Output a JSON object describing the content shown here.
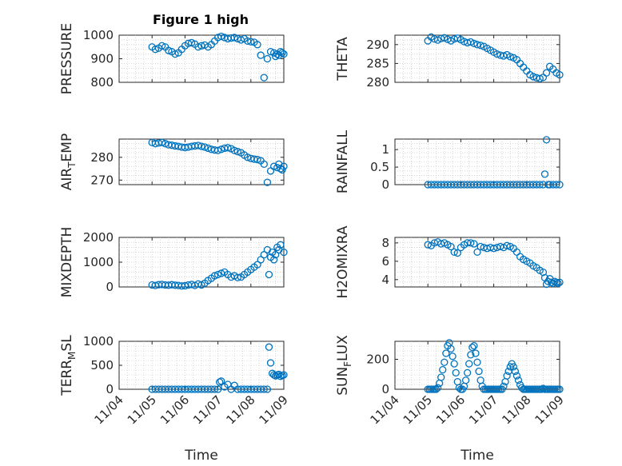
{
  "figure": {
    "title": "Figure 1 high",
    "marker_color": "#0072bd",
    "x_tick_labels": [
      "11/04",
      "11/05",
      "11/06",
      "11/07",
      "11/08",
      "11/09"
    ],
    "x_axis_label": "Time"
  },
  "chart_data": [
    {
      "type": "scatter",
      "name": "pressure",
      "ylabel": "PRESSURE",
      "xlim": [
        0,
        5
      ],
      "ylim": [
        800,
        1000
      ],
      "yticks": [
        800,
        900,
        1000
      ],
      "grid": true,
      "x": [
        1.0,
        1.1,
        1.2,
        1.3,
        1.4,
        1.5,
        1.6,
        1.7,
        1.8,
        1.9,
        2.0,
        2.1,
        2.2,
        2.3,
        2.4,
        2.5,
        2.6,
        2.7,
        2.8,
        2.9,
        3.0,
        3.1,
        3.2,
        3.3,
        3.4,
        3.5,
        3.6,
        3.7,
        3.8,
        3.9,
        4.0,
        4.1,
        4.2,
        4.3,
        4.4,
        4.5,
        4.6,
        4.7,
        4.75,
        4.8,
        4.85,
        4.9,
        4.95,
        5.0
      ],
      "y": [
        950,
        940,
        945,
        955,
        950,
        935,
        930,
        920,
        925,
        940,
        955,
        965,
        968,
        962,
        950,
        955,
        958,
        950,
        960,
        975,
        990,
        995,
        990,
        985,
        988,
        990,
        985,
        980,
        985,
        975,
        972,
        970,
        960,
        915,
        820,
        900,
        930,
        925,
        910,
        920,
        915,
        930,
        925,
        920
      ]
    },
    {
      "type": "scatter",
      "name": "theta",
      "ylabel": "THETA",
      "xlim": [
        0,
        5
      ],
      "ylim": [
        280,
        292.5
      ],
      "yticks": [
        280,
        285,
        290
      ],
      "grid": true,
      "x": [
        1.0,
        1.1,
        1.2,
        1.3,
        1.4,
        1.5,
        1.6,
        1.7,
        1.8,
        1.9,
        2.0,
        2.1,
        2.2,
        2.3,
        2.4,
        2.5,
        2.6,
        2.7,
        2.8,
        2.9,
        3.0,
        3.1,
        3.2,
        3.3,
        3.4,
        3.5,
        3.6,
        3.7,
        3.8,
        3.9,
        4.0,
        4.1,
        4.2,
        4.3,
        4.4,
        4.5,
        4.6,
        4.7,
        4.8,
        4.9,
        5.0
      ],
      "y": [
        291.0,
        292.0,
        291.5,
        291.2,
        291.6,
        291.8,
        291.4,
        291.0,
        291.5,
        291.7,
        291.3,
        290.8,
        290.5,
        290.7,
        290.3,
        290.0,
        289.8,
        289.5,
        289.0,
        288.5,
        288.0,
        287.5,
        287.2,
        287.0,
        287.3,
        286.8,
        286.5,
        286.0,
        285.0,
        284.0,
        283.0,
        282.0,
        281.5,
        281.2,
        281.0,
        281.3,
        282.5,
        284.2,
        283.5,
        282.5,
        282.0
      ]
    },
    {
      "type": "scatter",
      "name": "air_temp",
      "ylabel": "AIR_TEMP",
      "xlim": [
        0,
        5
      ],
      "ylim": [
        268,
        288
      ],
      "yticks": [
        270,
        280
      ],
      "grid": true,
      "x": [
        1.0,
        1.1,
        1.2,
        1.3,
        1.4,
        1.5,
        1.6,
        1.7,
        1.8,
        1.9,
        2.0,
        2.1,
        2.2,
        2.3,
        2.4,
        2.5,
        2.6,
        2.7,
        2.8,
        2.9,
        3.0,
        3.1,
        3.2,
        3.3,
        3.4,
        3.5,
        3.6,
        3.7,
        3.8,
        3.9,
        4.0,
        4.1,
        4.2,
        4.3,
        4.4,
        4.5,
        4.6,
        4.7,
        4.8,
        4.85,
        4.9,
        4.95,
        5.0
      ],
      "y": [
        286.5,
        286.0,
        286.3,
        286.5,
        286.0,
        285.5,
        285.3,
        285.0,
        284.8,
        284.5,
        284.3,
        284.5,
        284.8,
        285.0,
        285.2,
        284.8,
        284.5,
        284.0,
        283.5,
        283.2,
        283.0,
        283.5,
        284.0,
        284.2,
        283.8,
        283.0,
        282.5,
        282.0,
        281.0,
        280.0,
        279.5,
        279.2,
        279.0,
        278.5,
        277.0,
        269.0,
        274.0,
        276.0,
        275.5,
        277.0,
        275.0,
        274.5,
        276.0
      ]
    },
    {
      "type": "scatter",
      "name": "rainfall",
      "ylabel": "RAINFALL",
      "xlim": [
        0,
        5
      ],
      "ylim": [
        0,
        1.3
      ],
      "yticks": [
        0,
        0.5,
        1
      ],
      "grid": true,
      "x": [
        1.0,
        1.1,
        1.2,
        1.3,
        1.4,
        1.5,
        1.6,
        1.7,
        1.8,
        1.9,
        2.0,
        2.1,
        2.2,
        2.3,
        2.4,
        2.5,
        2.6,
        2.7,
        2.8,
        2.9,
        3.0,
        3.1,
        3.2,
        3.3,
        3.4,
        3.5,
        3.6,
        3.7,
        3.8,
        3.9,
        4.0,
        4.1,
        4.2,
        4.3,
        4.4,
        4.5,
        4.55,
        4.6,
        4.65,
        4.7,
        4.8,
        4.9,
        5.0
      ],
      "y": [
        0,
        0,
        0,
        0,
        0,
        0,
        0,
        0,
        0,
        0,
        0,
        0,
        0,
        0,
        0,
        0,
        0,
        0,
        0,
        0,
        0,
        0,
        0,
        0,
        0,
        0,
        0,
        0,
        0,
        0,
        0,
        0,
        0,
        0,
        0,
        0,
        0.3,
        1.28,
        0,
        0,
        0,
        0,
        0
      ]
    },
    {
      "type": "scatter",
      "name": "mixdepth",
      "ylabel": "MIXDEPTH",
      "xlim": [
        0,
        5
      ],
      "ylim": [
        0,
        2000
      ],
      "yticks": [
        0,
        1000,
        2000
      ],
      "grid": true,
      "x": [
        1.0,
        1.1,
        1.2,
        1.3,
        1.4,
        1.5,
        1.6,
        1.7,
        1.8,
        1.9,
        2.0,
        2.1,
        2.2,
        2.3,
        2.4,
        2.5,
        2.6,
        2.7,
        2.8,
        2.9,
        3.0,
        3.1,
        3.2,
        3.3,
        3.4,
        3.5,
        3.6,
        3.7,
        3.8,
        3.9,
        4.0,
        4.1,
        4.2,
        4.3,
        4.4,
        4.5,
        4.55,
        4.6,
        4.65,
        4.7,
        4.75,
        4.8,
        4.85,
        4.9,
        5.0
      ],
      "y": [
        80,
        60,
        90,
        100,
        80,
        70,
        90,
        70,
        60,
        40,
        50,
        80,
        100,
        60,
        120,
        80,
        150,
        260,
        350,
        450,
        500,
        550,
        600,
        500,
        400,
        450,
        380,
        400,
        500,
        600,
        700,
        800,
        900,
        1100,
        1300,
        1500,
        500,
        1200,
        1400,
        1100,
        1300,
        1600,
        1500,
        1700,
        1400
      ]
    },
    {
      "type": "scatter",
      "name": "h2omixra",
      "ylabel": "H2OMIXRA",
      "xlim": [
        0,
        5
      ],
      "ylim": [
        3.2,
        8.6
      ],
      "yticks": [
        4,
        6,
        8
      ],
      "grid": true,
      "x": [
        1.0,
        1.1,
        1.2,
        1.3,
        1.4,
        1.5,
        1.6,
        1.7,
        1.8,
        1.9,
        2.0,
        2.1,
        2.2,
        2.3,
        2.4,
        2.5,
        2.6,
        2.7,
        2.8,
        2.9,
        3.0,
        3.1,
        3.2,
        3.3,
        3.4,
        3.5,
        3.6,
        3.7,
        3.8,
        3.9,
        4.0,
        4.1,
        4.2,
        4.3,
        4.4,
        4.5,
        4.55,
        4.6,
        4.65,
        4.7,
        4.75,
        4.8,
        4.85,
        4.9,
        4.95,
        5.0
      ],
      "y": [
        7.8,
        7.7,
        8.0,
        8.1,
        7.9,
        8.0,
        7.8,
        7.6,
        7.0,
        6.9,
        7.5,
        7.8,
        8.0,
        8.0,
        7.9,
        7.0,
        7.6,
        7.5,
        7.4,
        7.5,
        7.4,
        7.5,
        7.6,
        7.5,
        7.7,
        7.6,
        7.4,
        7.0,
        6.5,
        6.2,
        6.0,
        5.8,
        5.5,
        5.3,
        5.0,
        4.8,
        4.2,
        3.5,
        3.8,
        4.1,
        3.7,
        3.6,
        3.8,
        3.7,
        3.6,
        3.7
      ]
    },
    {
      "type": "scatter",
      "name": "terr_msl",
      "ylabel": "TERR_MSL",
      "xlim": [
        0,
        5
      ],
      "ylim": [
        0,
        1000
      ],
      "yticks": [
        0,
        500,
        1000
      ],
      "grid": true,
      "x": [
        1.0,
        1.1,
        1.2,
        1.3,
        1.4,
        1.5,
        1.6,
        1.7,
        1.8,
        1.9,
        2.0,
        2.1,
        2.2,
        2.3,
        2.4,
        2.5,
        2.6,
        2.7,
        2.8,
        2.9,
        3.0,
        3.05,
        3.1,
        3.2,
        3.3,
        3.4,
        3.5,
        3.6,
        3.7,
        3.8,
        3.9,
        4.0,
        4.1,
        4.2,
        4.3,
        4.4,
        4.5,
        4.55,
        4.6,
        4.65,
        4.7,
        4.75,
        4.8,
        4.85,
        4.9,
        4.95,
        5.0
      ],
      "y": [
        0,
        0,
        0,
        0,
        0,
        0,
        0,
        0,
        0,
        0,
        0,
        0,
        0,
        0,
        0,
        0,
        0,
        0,
        0,
        0,
        0,
        150,
        170,
        50,
        100,
        0,
        80,
        0,
        0,
        0,
        0,
        0,
        0,
        0,
        0,
        0,
        0,
        880,
        550,
        330,
        300,
        280,
        300,
        310,
        270,
        290,
        300
      ]
    },
    {
      "type": "scatter",
      "name": "sun_flux",
      "ylabel": "SUN_FLUX",
      "xlim": [
        0,
        5
      ],
      "ylim": [
        0,
        320
      ],
      "yticks": [
        0,
        200
      ],
      "grid": true,
      "x": [
        1.0,
        1.05,
        1.1,
        1.15,
        1.2,
        1.25,
        1.3,
        1.35,
        1.4,
        1.45,
        1.5,
        1.55,
        1.6,
        1.65,
        1.7,
        1.75,
        1.8,
        1.85,
        1.9,
        1.95,
        2.0,
        2.05,
        2.1,
        2.15,
        2.2,
        2.25,
        2.3,
        2.35,
        2.4,
        2.45,
        2.5,
        2.55,
        2.6,
        2.65,
        2.7,
        2.75,
        2.8,
        2.85,
        2.9,
        2.95,
        3.0,
        3.05,
        3.1,
        3.15,
        3.2,
        3.25,
        3.3,
        3.35,
        3.4,
        3.45,
        3.5,
        3.55,
        3.6,
        3.65,
        3.7,
        3.75,
        3.8,
        3.85,
        3.9,
        3.95,
        4.0,
        4.05,
        4.1,
        4.15,
        4.2,
        4.25,
        4.3,
        4.35,
        4.4,
        4.45,
        4.5,
        4.55,
        4.6,
        4.65,
        4.7,
        4.75,
        4.8,
        4.85,
        4.9,
        4.95,
        5.0
      ],
      "y": [
        0,
        0,
        0,
        0,
        0,
        0,
        10,
        40,
        80,
        130,
        180,
        240,
        290,
        310,
        270,
        220,
        170,
        110,
        50,
        10,
        0,
        0,
        20,
        60,
        110,
        170,
        230,
        280,
        290,
        240,
        180,
        120,
        60,
        20,
        0,
        0,
        0,
        0,
        0,
        0,
        0,
        0,
        0,
        0,
        0,
        0,
        20,
        50,
        90,
        120,
        150,
        170,
        150,
        120,
        90,
        60,
        30,
        10,
        0,
        0,
        0,
        0,
        0,
        0,
        0,
        0,
        0,
        0,
        0,
        0,
        5,
        0,
        0,
        0,
        0,
        0,
        0,
        0,
        0,
        0,
        0
      ]
    }
  ]
}
